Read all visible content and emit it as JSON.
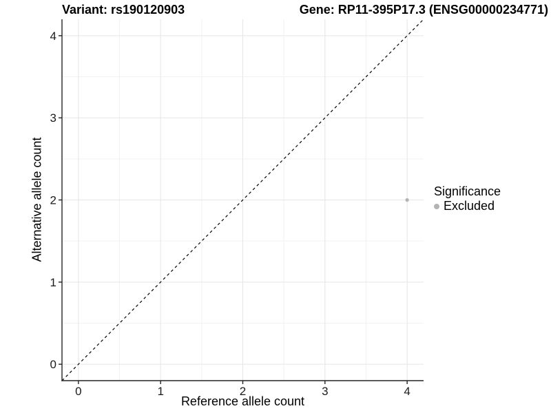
{
  "titles": {
    "variant": "Variant: rs190120903",
    "gene": "Gene: RP11-395P17.3 (ENSG00000234771)"
  },
  "axis": {
    "x_label": "Reference allele count",
    "y_label": "Alternative allele count"
  },
  "legend": {
    "title": "Significance",
    "entries": [
      {
        "label": "Excluded",
        "color": "#b3b3b3"
      }
    ]
  },
  "colors": {
    "background": "#ffffff",
    "grid_major": "#e5e5e5",
    "grid_minor": "#f2f2f2",
    "axis_line": "#222222",
    "tick_text": "#1a1a1a",
    "identity_line": "#000000",
    "point": "#b3b3b3"
  },
  "chart_data": {
    "type": "scatter",
    "title_left": "Variant: rs190120903",
    "title_right": "Gene: RP11-395P17.3 (ENSG00000234771)",
    "xlabel": "Reference allele count",
    "ylabel": "Alternative allele count",
    "xlim": [
      -0.2,
      4.2
    ],
    "ylim": [
      -0.2,
      4.2
    ],
    "x_ticks": [
      0,
      1,
      2,
      3,
      4
    ],
    "y_ticks": [
      0,
      1,
      2,
      3,
      4
    ],
    "x_minor_ticks": [
      0.5,
      1.5,
      2.5,
      3.5
    ],
    "y_minor_ticks": [
      0.5,
      1.5,
      2.5,
      3.5
    ],
    "grid": true,
    "identity_line": {
      "from": [
        -0.2,
        -0.2
      ],
      "to": [
        4.2,
        4.2
      ],
      "style": "dashed",
      "color": "#000000"
    },
    "series": [
      {
        "name": "Excluded",
        "color": "#b3b3b3",
        "points": [
          {
            "x": 4,
            "y": 2
          }
        ]
      }
    ],
    "legend": {
      "title": "Significance",
      "position": "right",
      "entries": [
        {
          "label": "Excluded",
          "color": "#b3b3b3"
        }
      ]
    }
  }
}
